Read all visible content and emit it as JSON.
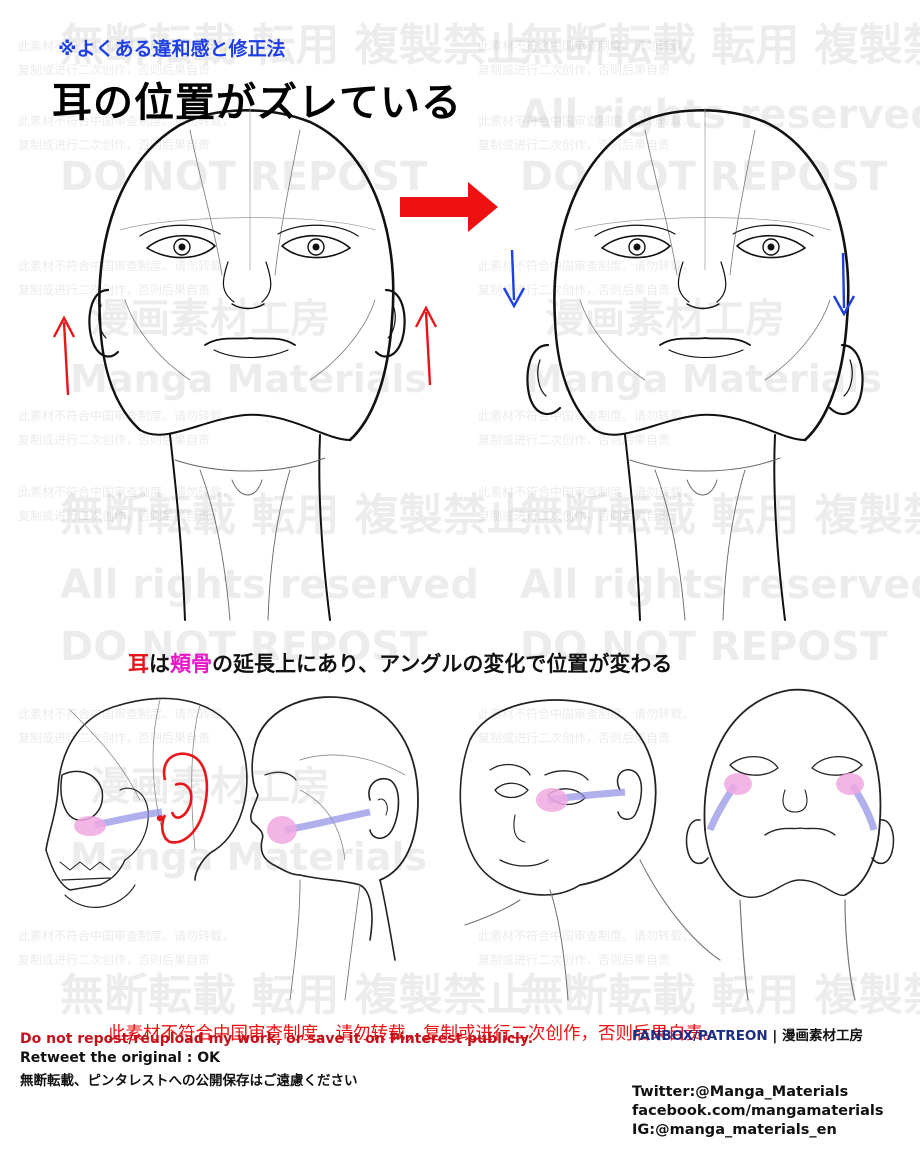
{
  "header": {
    "subtitle": "※よくある違和感と修正法",
    "title": "耳の位置がズレている"
  },
  "caption": {
    "part1": "耳",
    "part2": "は",
    "part3": "頬骨",
    "part4": "の延長上にあり、アングルの変化で位置が変わる"
  },
  "notice_cn": "此素材不符合中国审查制度。请勿转载，复制或进行二次创作，否则后果自责。",
  "bottom_left": {
    "line1": "Do not repost/reupload my work, or save it on Pinterest publicly.",
    "line2": "Retweet the original : OK",
    "line3": "無断転載、ピンタレストへの公開保存はご遠慮ください"
  },
  "bottom_right": {
    "fanbox": "FANBOX/PATREON",
    "separator": " | ",
    "studio": "漫画素材工房",
    "twitter": "Twitter:@Manga_Materials",
    "facebook": "facebook.com/mangamaterials",
    "instagram": "IG:@manga_materials_en"
  },
  "watermarks": {
    "no_reproduction": "無断転載 転用 複製禁止",
    "rights": "All rights reserved",
    "do_not_repost": "DO NOT REPOST",
    "studio": "漫画素材工房",
    "brand": "Manga Materials",
    "cn_line1": "此素材不符合中国审查制度。请勿转载，",
    "cn_line2": "复制或进行二次创作，否则后果自责"
  },
  "colors": {
    "accent_blue": "#1f3fe6",
    "wrong_arrow": "#e8151b",
    "fix_arrow": "#1f3fe6",
    "cheek_highlight": "#f0a8e0",
    "ear_highlight": "#e8151b"
  }
}
